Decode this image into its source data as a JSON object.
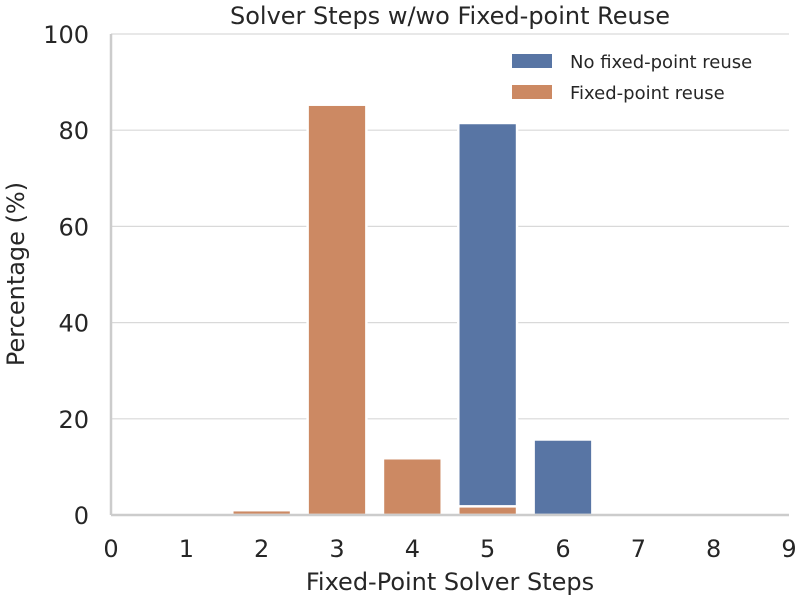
{
  "chart_data": {
    "type": "bar",
    "title": "Solver Steps w/wo Fixed-point Reuse",
    "xlabel": "Fixed-Point Solver Steps",
    "ylabel": "Percentage (%)",
    "xlim": [
      0,
      9
    ],
    "ylim": [
      0,
      100
    ],
    "xticks": [
      "0",
      "1",
      "2",
      "3",
      "4",
      "5",
      "6",
      "7",
      "8",
      "9"
    ],
    "yticks": [
      "0",
      "20",
      "40",
      "60",
      "80",
      "100"
    ],
    "grid": "horizontal",
    "legend": "top-right",
    "categories": [
      "1",
      "2",
      "3",
      "4",
      "5",
      "6",
      "7",
      "8"
    ],
    "series": [
      {
        "name": "No fixed-point reuse",
        "color": "#5875a4",
        "values": [
          0,
          0,
          0,
          0,
          81.5,
          15.7,
          0.5,
          0
        ]
      },
      {
        "name": "Fixed-point reuse",
        "color": "#cc8963",
        "values": [
          0,
          1.0,
          85.3,
          11.8,
          1.8,
          0,
          0,
          0
        ]
      }
    ]
  }
}
